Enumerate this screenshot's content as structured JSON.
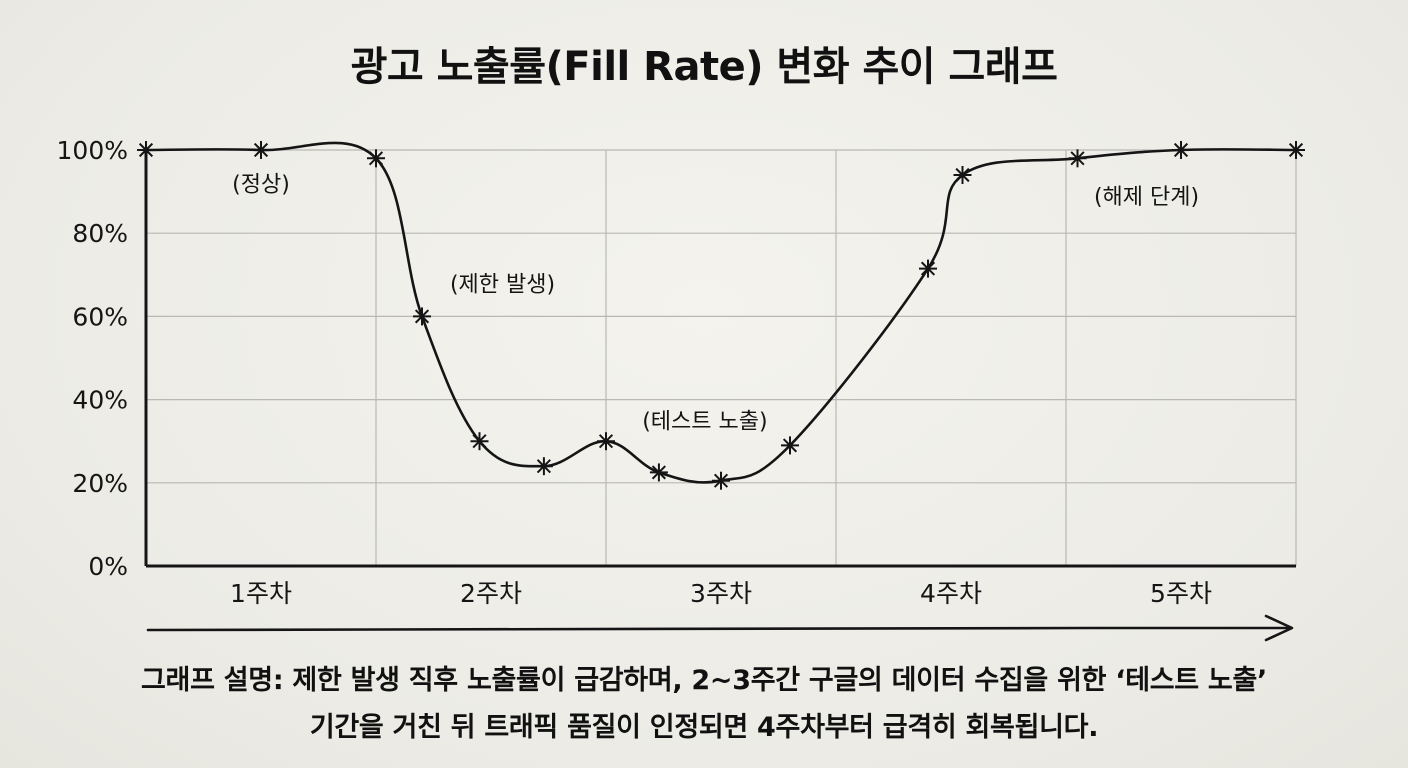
{
  "title": "광고 노출률(Fill Rate) 변화 추이 그래프",
  "chart_data": {
    "type": "line",
    "title": "광고 노출률(Fill Rate) 변화 추이 그래프",
    "categories": [
      "1주차",
      "2주차",
      "3주차",
      "4주차",
      "5주차"
    ],
    "x_range": [
      0.5,
      5.5
    ],
    "ylim": [
      0,
      100
    ],
    "y_ticks": [
      "0%",
      "20%",
      "40%",
      "60%",
      "80%",
      "100%"
    ],
    "y_tick_values": [
      0,
      20,
      40,
      60,
      80,
      100
    ],
    "grid": true,
    "series": [
      {
        "points": [
          {
            "x": 0.5,
            "y": 100
          },
          {
            "x": 1.0,
            "y": 100
          },
          {
            "x": 1.5,
            "y": 98
          },
          {
            "x": 1.7,
            "y": 60
          },
          {
            "x": 1.95,
            "y": 30
          },
          {
            "x": 2.23,
            "y": 24
          },
          {
            "x": 2.5,
            "y": 30
          },
          {
            "x": 2.73,
            "y": 22.5
          },
          {
            "x": 3.0,
            "y": 20.5
          },
          {
            "x": 3.3,
            "y": 29
          },
          {
            "x": 3.9,
            "y": 71.5
          },
          {
            "x": 4.05,
            "y": 94
          },
          {
            "x": 4.55,
            "y": 98
          },
          {
            "x": 5.0,
            "y": 100
          },
          {
            "x": 5.5,
            "y": 100
          }
        ]
      }
    ],
    "annotations": [
      {
        "text": "(정상)",
        "x": 1.0,
        "y": 90
      },
      {
        "text": "(제한 발생)",
        "x": 2.05,
        "y": 66
      },
      {
        "text": "(테스트 노출)",
        "x": 2.93,
        "y": 33
      },
      {
        "text": "(해제 단계)",
        "x": 4.85,
        "y": 87
      }
    ]
  },
  "caption": {
    "line1": "그래프 설명: 제한 발생 직후 노출률이 급감하며, 2~3주간 구글의 데이터 수집을 위한 ‘테스트 노출’",
    "line2": "기간을 거친 뒤 트래픽 품질이 인정되면 4주차부터 급격히 회복됩니다."
  }
}
